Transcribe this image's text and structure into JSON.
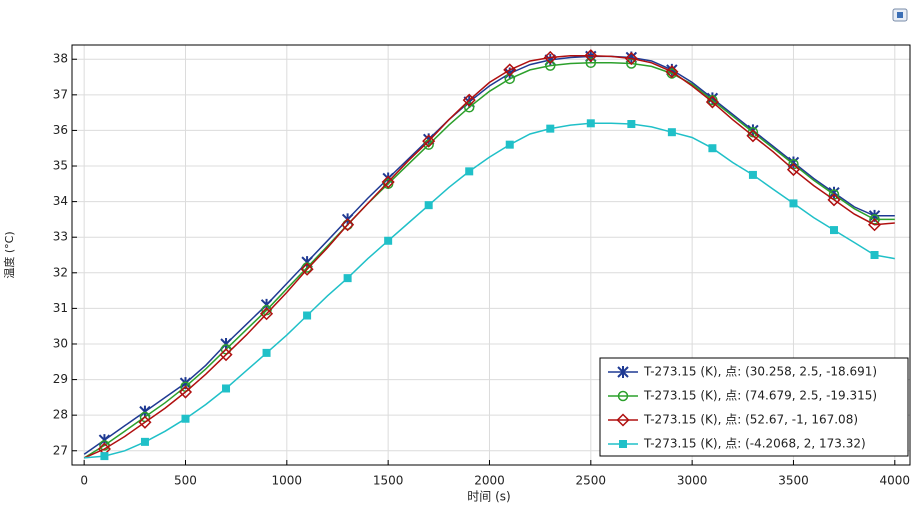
{
  "chart_data": {
    "type": "line",
    "xlabel": "时间 (s)",
    "ylabel": "温度 (°C)",
    "x": [
      0,
      100,
      200,
      300,
      400,
      500,
      600,
      700,
      800,
      900,
      1000,
      1100,
      1200,
      1300,
      1400,
      1500,
      1600,
      1700,
      1800,
      1900,
      2000,
      2100,
      2200,
      2300,
      2400,
      2500,
      2600,
      2700,
      2800,
      2900,
      3000,
      3100,
      3200,
      3300,
      3400,
      3500,
      3600,
      3700,
      3800,
      3900,
      4000
    ],
    "series": [
      {
        "name": "T-273.15 (K), 点: (30.258, 2.5, -18.691)",
        "color": "#1f3a93",
        "marker": "star",
        "values": [
          26.9,
          27.3,
          27.7,
          28.1,
          28.5,
          28.9,
          29.4,
          30.0,
          30.55,
          31.1,
          31.7,
          32.3,
          32.9,
          33.5,
          34.1,
          34.65,
          35.2,
          35.75,
          36.3,
          36.8,
          37.25,
          37.6,
          37.85,
          37.98,
          38.05,
          38.08,
          38.08,
          38.05,
          37.95,
          37.7,
          37.35,
          36.9,
          36.45,
          36.0,
          35.55,
          35.1,
          34.65,
          34.25,
          33.85,
          33.6,
          33.6
        ]
      },
      {
        "name": "T-273.15 (K), 点: (74.679, 2.5, -19.315)",
        "color": "#2ca02c",
        "marker": "circle",
        "values": [
          26.8,
          27.15,
          27.55,
          27.95,
          28.35,
          28.8,
          29.3,
          29.85,
          30.4,
          30.95,
          31.55,
          32.15,
          32.75,
          33.35,
          33.95,
          34.5,
          35.05,
          35.6,
          36.15,
          36.65,
          37.1,
          37.45,
          37.7,
          37.82,
          37.88,
          37.9,
          37.9,
          37.88,
          37.8,
          37.6,
          37.3,
          36.85,
          36.4,
          35.95,
          35.5,
          35.05,
          34.6,
          34.2,
          33.8,
          33.5,
          33.5
        ]
      },
      {
        "name": "T-273.15 (K), 点: (52.67, -1, 167.08)",
        "color": "#b01010",
        "marker": "diamond",
        "values": [
          26.8,
          27.05,
          27.4,
          27.8,
          28.2,
          28.65,
          29.15,
          29.7,
          30.25,
          30.85,
          31.45,
          32.1,
          32.7,
          33.35,
          33.95,
          34.55,
          35.15,
          35.7,
          36.3,
          36.85,
          37.35,
          37.7,
          37.95,
          38.05,
          38.1,
          38.1,
          38.08,
          38.02,
          37.9,
          37.65,
          37.25,
          36.8,
          36.3,
          35.85,
          35.4,
          34.9,
          34.45,
          34.05,
          33.65,
          33.35,
          33.4
        ]
      },
      {
        "name": "T-273.15 (K), 点: (-4.2068, 2, 173.32)",
        "color": "#20c0c8",
        "marker": "square",
        "values": [
          26.8,
          26.85,
          27.0,
          27.25,
          27.55,
          27.9,
          28.3,
          28.75,
          29.25,
          29.75,
          30.25,
          30.8,
          31.35,
          31.85,
          32.4,
          32.9,
          33.4,
          33.9,
          34.4,
          34.85,
          35.25,
          35.6,
          35.9,
          36.05,
          36.15,
          36.2,
          36.2,
          36.18,
          36.1,
          35.95,
          35.8,
          35.5,
          35.1,
          34.75,
          34.35,
          33.95,
          33.55,
          33.2,
          32.85,
          32.5,
          32.4
        ]
      }
    ],
    "xlim": [
      -60,
      4075
    ],
    "ylim": [
      26.6,
      38.4
    ],
    "xticks": [
      0,
      500,
      1000,
      1500,
      2000,
      2500,
      3000,
      3500,
      4000
    ],
    "yticks": [
      27,
      28,
      29,
      30,
      31,
      32,
      33,
      34,
      35,
      36,
      37,
      38
    ],
    "grid": true,
    "legend": "lower right"
  }
}
